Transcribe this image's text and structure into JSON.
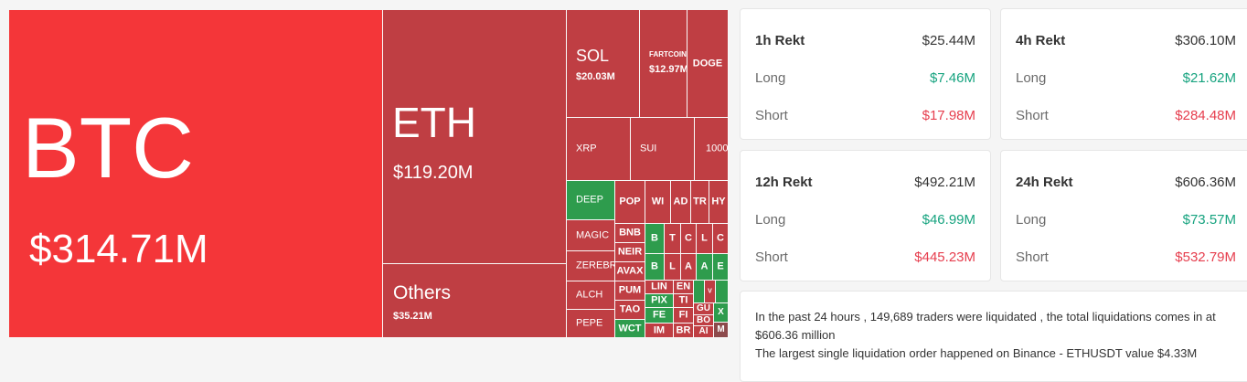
{
  "colors": {
    "loss": "#bf3e43",
    "loss_major": "#f43639",
    "gain": "#2e9c4d",
    "long": "#16a37f",
    "short": "#e63d4d"
  },
  "treemap": {
    "btc": {
      "symbol": "BTC",
      "value": "$314.71M"
    },
    "eth": {
      "symbol": "ETH",
      "value": "$119.20M"
    },
    "others": {
      "symbol": "Others",
      "value": "$35.21M"
    },
    "sol": {
      "symbol": "SOL",
      "value": "$20.03M"
    },
    "fartcoin": {
      "symbol": "FARTCOIN",
      "value": "$12.97M"
    },
    "doge": "DOGE",
    "xrp": "XRP",
    "sui": "SUI",
    "t1000": "1000",
    "deep": "DEEP",
    "magic": "MAGIC",
    "zerebro": "ZEREBR",
    "alch": "ALCH",
    "pepe": "PEPE",
    "popcat": "POP",
    "wif": "WI",
    "ada": "AD",
    "trump": "TR",
    "hype": "HY",
    "bnb": "BNB",
    "neiro": "NEIR",
    "avax": "AVAX",
    "pump": "PUM",
    "tao": "TAO",
    "wct": "WCT",
    "b1": "B",
    "b2": "B",
    "link": "LIN",
    "pix": "PIX",
    "fet": "FE",
    "imx": "IM",
    "t1": "T",
    "c1": "C",
    "l1": "L",
    "c2": "C",
    "l2": "L",
    "a1": "A",
    "a2": "A",
    "e1": "E",
    "ens": "EN",
    "ti": "TI",
    "fi": "FI",
    "br": "BR",
    "gu": "GU",
    "bo": "BO",
    "ai": "AI",
    "x": "X",
    "m": "M",
    "v": "V"
  },
  "rekt": [
    {
      "title": "1h Rekt",
      "total": "$25.44M",
      "long_label": "Long",
      "long": "$7.46M",
      "short_label": "Short",
      "short": "$17.98M"
    },
    {
      "title": "4h Rekt",
      "total": "$306.10M",
      "long_label": "Long",
      "long": "$21.62M",
      "short_label": "Short",
      "short": "$284.48M"
    },
    {
      "title": "12h Rekt",
      "total": "$492.21M",
      "long_label": "Long",
      "long": "$46.99M",
      "short_label": "Short",
      "short": "$445.23M"
    },
    {
      "title": "24h Rekt",
      "total": "$606.36M",
      "long_label": "Long",
      "long": "$73.57M",
      "short_label": "Short",
      "short": "$532.79M"
    }
  ],
  "summary": {
    "line1": "In the past 24 hours , 149,689 traders were liquidated , the total liquidations comes in at $606.36 million",
    "line2": "The largest single liquidation order happened on Binance - ETHUSDT value $4.33M"
  }
}
